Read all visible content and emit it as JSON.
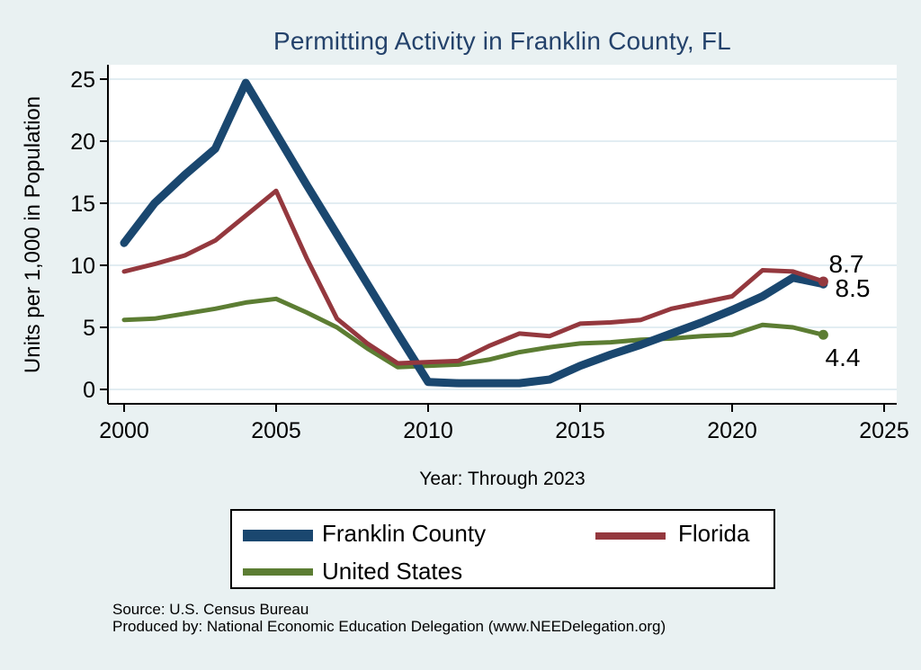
{
  "chart_data": {
    "type": "line",
    "title": "Permitting Activity in Franklin County, FL",
    "ylabel": "Units per 1,000 in Population",
    "xlabel": "Year: Through 2023",
    "x": [
      2000,
      2001,
      2002,
      2003,
      2004,
      2005,
      2006,
      2007,
      2008,
      2009,
      2010,
      2011,
      2012,
      2013,
      2014,
      2015,
      2016,
      2017,
      2018,
      2019,
      2020,
      2021,
      2022,
      2023
    ],
    "series": [
      {
        "name": "Franklin County",
        "color": "#1a476f",
        "width": 9,
        "values": [
          11.8,
          15.0,
          17.3,
          19.4,
          24.7,
          20.6,
          16.5,
          12.5,
          8.5,
          4.5,
          0.6,
          0.5,
          0.5,
          0.5,
          0.8,
          1.9,
          2.8,
          3.6,
          4.5,
          5.4,
          6.4,
          7.5,
          9.0,
          8.5
        ]
      },
      {
        "name": "Florida",
        "color": "#94383e",
        "width": 5,
        "values": [
          9.5,
          10.1,
          10.8,
          12.0,
          14.0,
          16.0,
          10.6,
          5.7,
          3.7,
          2.1,
          2.2,
          2.3,
          3.5,
          4.5,
          4.3,
          5.3,
          5.4,
          5.6,
          6.5,
          7.0,
          7.5,
          9.6,
          9.5,
          8.7
        ]
      },
      {
        "name": "United States",
        "color": "#5c7d33",
        "width": 5,
        "values": [
          5.6,
          5.7,
          6.1,
          6.5,
          7.0,
          7.3,
          6.2,
          5.0,
          3.3,
          1.8,
          1.9,
          2.0,
          2.4,
          3.0,
          3.4,
          3.7,
          3.8,
          4.0,
          4.1,
          4.3,
          4.4,
          5.2,
          5.0,
          4.4
        ]
      }
    ],
    "x_ticks": [
      2000,
      2005,
      2010,
      2015,
      2020,
      2025
    ],
    "y_ticks": [
      0,
      5,
      10,
      15,
      20,
      25
    ],
    "xlim": [
      2000,
      2025
    ],
    "ylim": [
      0,
      25
    ],
    "grid": true,
    "legend_position": "bottom",
    "end_labels": [
      {
        "text": "8.7",
        "x": 941,
        "y": 303
      },
      {
        "text": "8.5",
        "x": 948,
        "y": 330
      },
      {
        "text": "4.4",
        "x": 937,
        "y": 407
      }
    ],
    "colors": {
      "background": "#e9f1f2",
      "plot_background": "#ffffff",
      "gridline": "#e2edf2",
      "axis": "#000000",
      "title": "#24426b"
    }
  },
  "legend": {
    "items": [
      {
        "label": "Franklin County"
      },
      {
        "label": "Florida"
      },
      {
        "label": "United States"
      }
    ]
  },
  "footer": {
    "source": "Source: U.S. Census Bureau",
    "produced_by": "Produced by: National Economic Education Delegation (www.NEEDelegation.org)"
  }
}
